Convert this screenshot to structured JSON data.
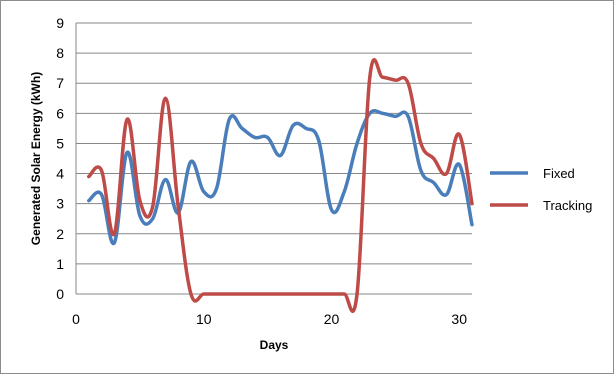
{
  "chart_data": {
    "type": "line",
    "xlabel": "Days",
    "ylabel": "Generated Solar Energy (kWh)",
    "xlim": [
      0,
      31
    ],
    "ylim": [
      0,
      9
    ],
    "xticks": [
      0,
      10,
      20,
      30
    ],
    "yticks": [
      0,
      1,
      2,
      3,
      4,
      5,
      6,
      7,
      8,
      9
    ],
    "grid": "horizontal",
    "legend_position": "right",
    "series": [
      {
        "name": "Fixed",
        "color": "#4a7ebb",
        "x": [
          1,
          2,
          3,
          4,
          5,
          6,
          7,
          8,
          9,
          10,
          11,
          12,
          13,
          14,
          15,
          16,
          17,
          18,
          19,
          20,
          21,
          22,
          23,
          24,
          25,
          26,
          27,
          28,
          29,
          30,
          31
        ],
        "y": [
          3.1,
          3.3,
          1.7,
          4.7,
          2.6,
          2.5,
          3.8,
          2.7,
          4.4,
          3.4,
          3.5,
          5.8,
          5.5,
          5.2,
          5.2,
          4.6,
          5.6,
          5.5,
          5.1,
          2.8,
          3.4,
          5.0,
          6.0,
          6.0,
          5.9,
          5.9,
          4.1,
          3.7,
          3.3,
          4.3,
          2.3
        ]
      },
      {
        "name": "Tracking",
        "color": "#be4b48",
        "x": [
          1,
          2,
          3,
          4,
          5,
          6,
          7,
          8,
          9,
          10,
          11,
          12,
          13,
          14,
          15,
          16,
          17,
          18,
          19,
          20,
          21,
          22,
          23,
          24,
          25,
          26,
          27,
          28,
          29,
          30,
          31
        ],
        "y": [
          3.9,
          4.1,
          2.0,
          5.8,
          3.1,
          2.9,
          6.5,
          2.9,
          0,
          0,
          0,
          0,
          0,
          0,
          0,
          0,
          0,
          0,
          0,
          0,
          0,
          0,
          7.2,
          7.2,
          7.1,
          7.0,
          5.0,
          4.5,
          4.0,
          5.3,
          3.0
        ]
      }
    ]
  }
}
